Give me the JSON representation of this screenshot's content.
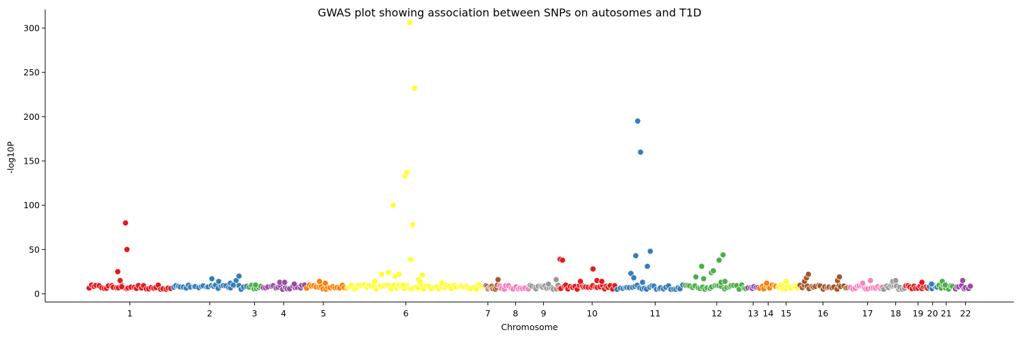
{
  "chart_data": {
    "type": "scatter",
    "title": "GWAS plot showing association between SNPs on autosomes and T1D",
    "xlabel": "Chromosome",
    "ylabel": "-log10P",
    "ylim": [
      -10,
      320
    ],
    "y_ticks": [
      0,
      50,
      100,
      150,
      200,
      250,
      300
    ],
    "xlim": [
      0,
      10000
    ],
    "x_ticks": [
      {
        "label": "1",
        "pos": 885
      },
      {
        "label": "2",
        "pos": 1708
      },
      {
        "label": "3",
        "pos": 2170
      },
      {
        "label": "4",
        "pos": 2470
      },
      {
        "label": "5",
        "pos": 2880
      },
      {
        "label": "6",
        "pos": 3730
      },
      {
        "label": "7",
        "pos": 4575
      },
      {
        "label": "8",
        "pos": 4860
      },
      {
        "label": "9",
        "pos": 5150
      },
      {
        "label": "10",
        "pos": 5650
      },
      {
        "label": "11",
        "pos": 6300
      },
      {
        "label": "12",
        "pos": 6935
      },
      {
        "label": "13",
        "pos": 7310
      },
      {
        "label": "14",
        "pos": 7465
      },
      {
        "label": "15",
        "pos": 7650
      },
      {
        "label": "16",
        "pos": 8030
      },
      {
        "label": "17",
        "pos": 8490
      },
      {
        "label": "18",
        "pos": 8780
      },
      {
        "label": "19",
        "pos": 9010
      },
      {
        "label": "20",
        "pos": 9160
      },
      {
        "label": "21",
        "pos": 9300
      },
      {
        "label": "22",
        "pos": 9500
      }
    ],
    "palette": [
      "#e41a1c",
      "#377eb8",
      "#4daf4a",
      "#984ea3",
      "#ff7f00",
      "#ffff33",
      "#a65628",
      "#f781bf",
      "#999999"
    ],
    "point_edge_color": "#ffffff",
    "grid": false,
    "legend": "none",
    "series": [
      {
        "chromosome": "1",
        "color": "#e41a1c",
        "range": [
          450,
          1320
        ],
        "base_count": 34,
        "peaks": [
          [
            760,
            25
          ],
          [
            785,
            15
          ],
          [
            800,
            8
          ],
          [
            840,
            80
          ],
          [
            855,
            50
          ]
        ]
      },
      {
        "chromosome": "2",
        "color": "#377eb8",
        "range": [
          1320,
          2100
        ],
        "base_count": 30,
        "peaks": [
          [
            1730,
            17
          ],
          [
            1800,
            14
          ],
          [
            1920,
            12
          ],
          [
            1980,
            15
          ],
          [
            2010,
            20
          ],
          [
            1950,
            10
          ]
        ]
      },
      {
        "chromosome": "3",
        "color": "#4daf4a",
        "range": [
          2100,
          2250
        ],
        "base_count": 6,
        "peaks": [
          [
            2180,
            10
          ]
        ]
      },
      {
        "chromosome": "4",
        "color": "#984ea3",
        "range": [
          2250,
          2700
        ],
        "base_count": 18,
        "peaks": [
          [
            2430,
            13
          ],
          [
            2480,
            13
          ],
          [
            2580,
            11
          ]
        ]
      },
      {
        "chromosome": "5",
        "color": "#ff7f00",
        "range": [
          2700,
          3130
        ],
        "base_count": 18,
        "peaks": [
          [
            2840,
            14
          ],
          [
            2900,
            12
          ]
        ]
      },
      {
        "chromosome": "6",
        "color": "#ffff33",
        "range": [
          3130,
          4550
        ],
        "base_count": 55,
        "peaks": [
          [
            3480,
            22
          ],
          [
            3550,
            24
          ],
          [
            3620,
            20
          ],
          [
            3600,
            100
          ],
          [
            3660,
            22
          ],
          [
            3700,
            10
          ],
          [
            3720,
            133
          ],
          [
            3740,
            137
          ],
          [
            3770,
            306
          ],
          [
            3780,
            39
          ],
          [
            3800,
            78
          ],
          [
            3820,
            232
          ],
          [
            3860,
            16
          ],
          [
            3880,
            13
          ],
          [
            3900,
            21
          ],
          [
            3410,
            14
          ],
          [
            4100,
            12
          ]
        ]
      },
      {
        "chromosome": "7",
        "color": "#a65628",
        "range": [
          4550,
          4680
        ],
        "base_count": 12,
        "peaks": [
          [
            4680,
            16
          ]
        ]
      },
      {
        "chromosome": "8",
        "color": "#f781bf",
        "range": [
          4680,
          5000
        ],
        "base_count": 13,
        "peaks": []
      },
      {
        "chromosome": "8b",
        "color": "#999999",
        "range": [
          5000,
          5310
        ],
        "base_count": 14,
        "peaks": [
          [
            5280,
            16
          ],
          [
            5200,
            11
          ]
        ]
      },
      {
        "chromosome": "9",
        "color": "#e41a1c",
        "range": [
          5300,
          5900
        ],
        "base_count": 26,
        "peaks": [
          [
            5320,
            39
          ],
          [
            5345,
            38
          ],
          [
            5530,
            14
          ],
          [
            5660,
            28
          ],
          [
            5700,
            15
          ],
          [
            5750,
            14
          ]
        ]
      },
      {
        "chromosome": "10",
        "color": "#377eb8",
        "range": [
          5900,
          6600
        ],
        "base_count": 28,
        "peaks": [
          [
            6050,
            23
          ],
          [
            6080,
            18
          ],
          [
            6100,
            43
          ],
          [
            6120,
            195
          ],
          [
            6150,
            160
          ],
          [
            6170,
            13
          ],
          [
            6220,
            31
          ],
          [
            6250,
            48
          ]
        ]
      },
      {
        "chromosome": "11",
        "color": "#4daf4a",
        "range": [
          6600,
          7250
        ],
        "base_count": 26,
        "peaks": [
          [
            6720,
            19
          ],
          [
            6800,
            17
          ],
          [
            6880,
            24
          ],
          [
            6900,
            26
          ],
          [
            6960,
            38
          ],
          [
            6980,
            13
          ],
          [
            7000,
            44
          ],
          [
            7020,
            14
          ],
          [
            6780,
            31
          ]
        ]
      },
      {
        "chromosome": "12",
        "color": "#984ea3",
        "range": [
          7250,
          7370
        ],
        "base_count": 6,
        "peaks": []
      },
      {
        "chromosome": "13",
        "color": "#ff7f00",
        "range": [
          7370,
          7560
        ],
        "base_count": 9,
        "peaks": [
          [
            7450,
            12
          ]
        ]
      },
      {
        "chromosome": "14",
        "color": "#ffff33",
        "range": [
          7560,
          7780
        ],
        "base_count": 10,
        "peaks": [
          [
            7650,
            14
          ]
        ]
      },
      {
        "chromosome": "15",
        "color": "#a65628",
        "range": [
          7780,
          8300
        ],
        "base_count": 22,
        "peaks": [
          [
            7840,
            14
          ],
          [
            7860,
            18
          ],
          [
            7880,
            22
          ],
          [
            8180,
            15
          ],
          [
            8200,
            19
          ]
        ]
      },
      {
        "chromosome": "16",
        "color": "#f781bf",
        "range": [
          8300,
          8650
        ],
        "base_count": 15,
        "peaks": [
          [
            8440,
            12
          ],
          [
            8520,
            15
          ]
        ]
      },
      {
        "chromosome": "17",
        "color": "#999999",
        "range": [
          8650,
          8880
        ],
        "base_count": 11,
        "peaks": [
          [
            8750,
            14
          ],
          [
            8780,
            15
          ]
        ]
      },
      {
        "chromosome": "18",
        "color": "#e41a1c",
        "range": [
          8880,
          9120
        ],
        "base_count": 12,
        "peaks": [
          [
            9050,
            13
          ]
        ]
      },
      {
        "chromosome": "19",
        "color": "#377eb8",
        "range": [
          9120,
          9220
        ],
        "base_count": 5,
        "peaks": [
          [
            9150,
            11
          ]
        ]
      },
      {
        "chromosome": "20",
        "color": "#4daf4a",
        "range": [
          9220,
          9380
        ],
        "base_count": 7,
        "peaks": [
          [
            9260,
            14
          ],
          [
            9290,
            10
          ]
        ]
      },
      {
        "chromosome": "21",
        "color": "#984ea3",
        "range": [
          9380,
          9560
        ],
        "base_count": 8,
        "peaks": [
          [
            9470,
            15
          ]
        ]
      }
    ]
  }
}
